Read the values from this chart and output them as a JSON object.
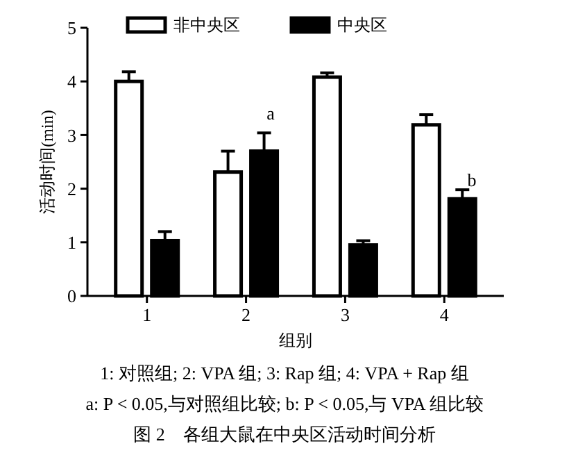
{
  "chart_data": {
    "type": "bar",
    "title": "图 2　各组大鼠在中央区活动时间分析",
    "xlabel": "组别",
    "ylabel": "活动时间(min)",
    "categories": [
      "1",
      "2",
      "3",
      "4"
    ],
    "series": [
      {
        "name": "非中央区",
        "color": "#ffffff",
        "values": [
          4.0,
          2.31,
          4.08,
          3.19
        ],
        "errors": [
          0.18,
          0.39,
          0.08,
          0.19
        ]
      },
      {
        "name": "中央区",
        "color": "#000000",
        "values": [
          1.03,
          2.7,
          0.95,
          1.81
        ],
        "errors": [
          0.17,
          0.34,
          0.08,
          0.17
        ]
      }
    ],
    "ylim": [
      0,
      5
    ],
    "yticks": [
      0,
      1,
      2,
      3,
      4,
      5
    ],
    "grid": false,
    "legend": "top",
    "annotations": [
      "a",
      "b",
      "1: 对照组; 2: VPA 组; 3: Rap 组; 4: VPA + Rap 组",
      "a: P < 0.05,与对照组比较; b: P < 0.05,与 VPA 组比较"
    ]
  }
}
